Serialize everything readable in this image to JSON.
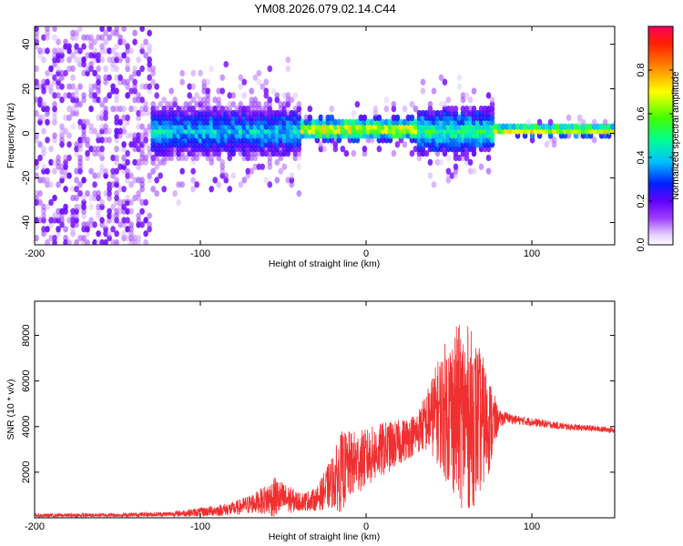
{
  "chart_data": [
    {
      "type": "heatmap",
      "title": "YM08.2026.079.02.14.C44",
      "xlabel": "Height of straight line (km)",
      "ylabel": "Frequency (Hz)",
      "xlim": [
        -200,
        150
      ],
      "ylim": [
        -50,
        48
      ],
      "xticks": [
        -200,
        -100,
        0,
        100
      ],
      "xtick_labels": [
        "-200",
        "-100",
        "0",
        "100"
      ],
      "yticks": [
        -40,
        -20,
        0,
        20,
        40
      ],
      "ytick_labels": [
        "-40",
        "-20",
        "0",
        "20",
        "40"
      ],
      "colorbar": {
        "label": "Normalized spectral amplitude",
        "range": [
          0,
          1
        ],
        "ticks": [
          0.0,
          0.2,
          0.4,
          0.6,
          0.8
        ],
        "tick_labels": [
          "0.0",
          "0.2",
          "0.4",
          "0.6",
          "0.8"
        ],
        "colormap": [
          "#ffffff",
          "#c8a0ff",
          "#8000ff",
          "#0040ff",
          "#00c0ff",
          "#00ff80",
          "#80ff00",
          "#ffff00",
          "#ff8000",
          "#ff0000"
        ]
      },
      "regions": [
        {
          "x": [
            -200,
            -130
          ],
          "freq_spread": [
            -50,
            48
          ],
          "amplitude": [
            0.05,
            0.2
          ]
        },
        {
          "x": [
            -130,
            -40
          ],
          "freq_center": 0,
          "freq_halfwidth": 12,
          "amplitude": [
            0.2,
            0.5
          ]
        },
        {
          "x": [
            -40,
            30
          ],
          "freq_center": 1,
          "freq_halfwidth": 5,
          "amplitude": [
            0.4,
            0.9
          ]
        },
        {
          "x": [
            30,
            75
          ],
          "freq_center": 0,
          "freq_halfwidth": 10,
          "amplitude": [
            0.3,
            0.6
          ]
        },
        {
          "x": [
            75,
            150
          ],
          "freq_center": 0.5,
          "freq_halfwidth": 2.5,
          "amplitude": [
            0.5,
            0.9
          ]
        }
      ]
    },
    {
      "type": "line",
      "title": "",
      "xlabel": "Height of straight line (km)",
      "ylabel": "SNR (10 * v/v)",
      "xlim": [
        -200,
        150
      ],
      "ylim": [
        0,
        9500
      ],
      "xticks": [
        -200,
        -100,
        0,
        100
      ],
      "xtick_labels": [
        "-200",
        "-100",
        "0",
        "100"
      ],
      "yticks": [
        2000,
        4000,
        6000,
        8000
      ],
      "ytick_labels": [
        "2000",
        "4000",
        "6000",
        "8000"
      ],
      "series": [
        {
          "name": "SNR",
          "color": "#f03030",
          "envelope": {
            "x": [
              -200,
              -150,
              -120,
              -100,
              -80,
              -65,
              -55,
              -40,
              -30,
              -20,
              -15,
              -10,
              0,
              10,
              20,
              30,
              35,
              40,
              45,
              50,
              55,
              60,
              65,
              70,
              75,
              80,
              85,
              90,
              100,
              120,
              150
            ],
            "center": [
              100,
              120,
              160,
              250,
              400,
              700,
              900,
              700,
              800,
              1600,
              2000,
              2300,
              2600,
              3000,
              3300,
              3700,
              4100,
              4500,
              4700,
              4700,
              4600,
              4400,
              4300,
              4200,
              4100,
              4300,
              4400,
              4300,
              4200,
              4000,
              3850
            ],
            "spread": [
              80,
              90,
              100,
              200,
              300,
              500,
              900,
              400,
              500,
              1200,
              1800,
              1500,
              1300,
              1200,
              1000,
              900,
              1200,
              1800,
              2600,
              3400,
              3900,
              4200,
              3800,
              3000,
              2000,
              400,
              250,
              200,
              180,
              150,
              120
            ]
          }
        }
      ]
    }
  ]
}
